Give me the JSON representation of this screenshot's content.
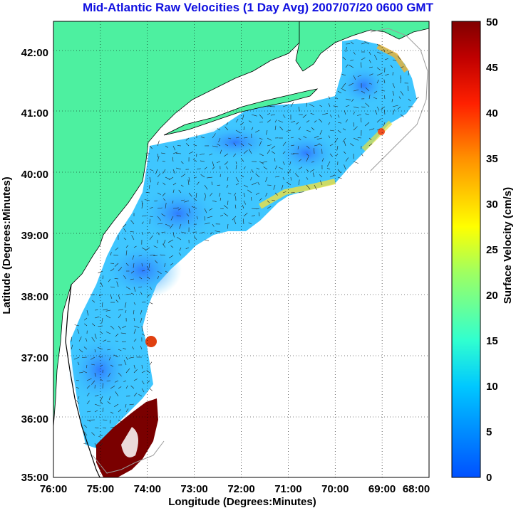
{
  "title": "Mid-Atlantic Raw Velocities (1 Day Avg) 2007/07/20 0600 GMT",
  "x_axis": {
    "label": "Longitude (Degrees:Minutes)",
    "ticks": [
      "76:00",
      "75:00",
      "74:00",
      "73:00",
      "72:00",
      "71:00",
      "70:00",
      "69:00",
      "68:00"
    ]
  },
  "y_axis": {
    "label": "Latitude (Degrees:Minutes)",
    "ticks": [
      "35:00",
      "36:00",
      "37:00",
      "38:00",
      "39:00",
      "40:00",
      "41:00",
      "42:00"
    ]
  },
  "colorbar": {
    "label": "Surface Velocity (cm/s)",
    "ticks": [
      "0",
      "5",
      "10",
      "15",
      "20",
      "25",
      "30",
      "35",
      "40",
      "45",
      "50"
    ],
    "range": [
      0,
      50
    ]
  },
  "colors": {
    "land": "#4df0a0",
    "ocean_field_low": "#3c8cff",
    "ocean_field_mid": "#3cc8ff",
    "title": "#1010e0"
  }
}
